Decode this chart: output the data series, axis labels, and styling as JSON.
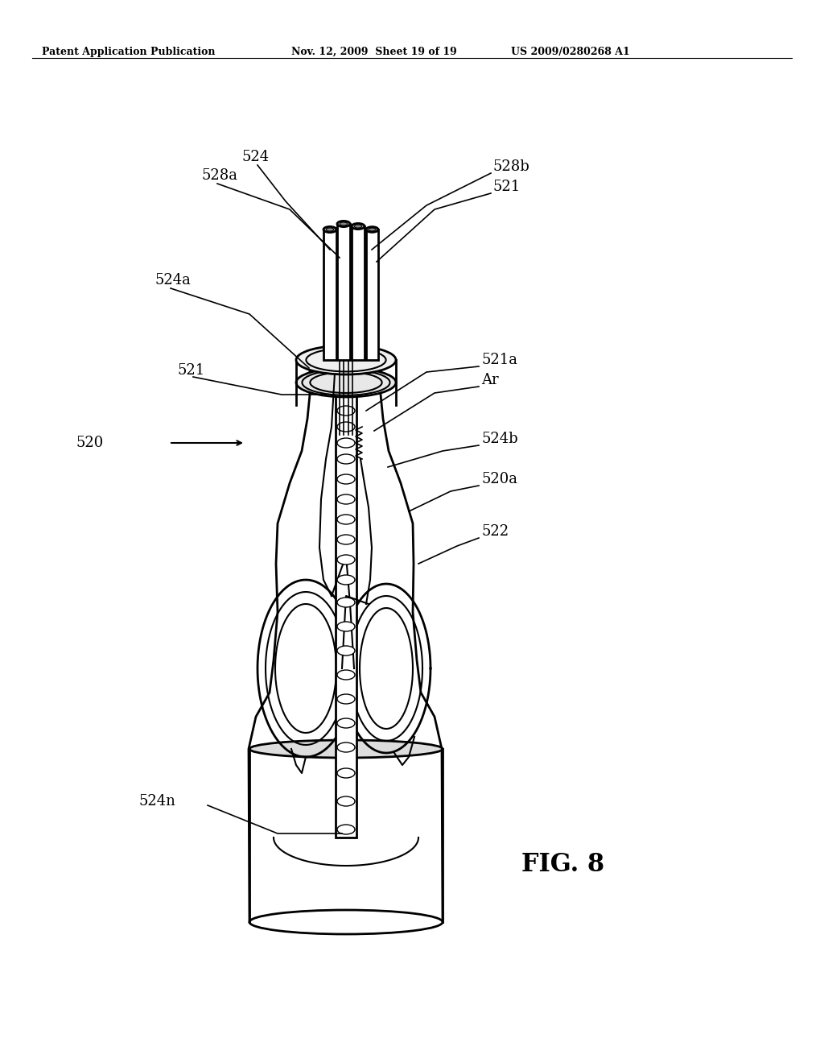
{
  "bg_color": "#ffffff",
  "header_left": "Patent Application Publication",
  "header_mid": "Nov. 12, 2009  Sheet 19 of 19",
  "header_right": "US 2009/0280268 A1",
  "fig_label": "FIG. 8",
  "ann_fontsize": 13,
  "header_fontsize": 9,
  "fig_fontsize": 22
}
